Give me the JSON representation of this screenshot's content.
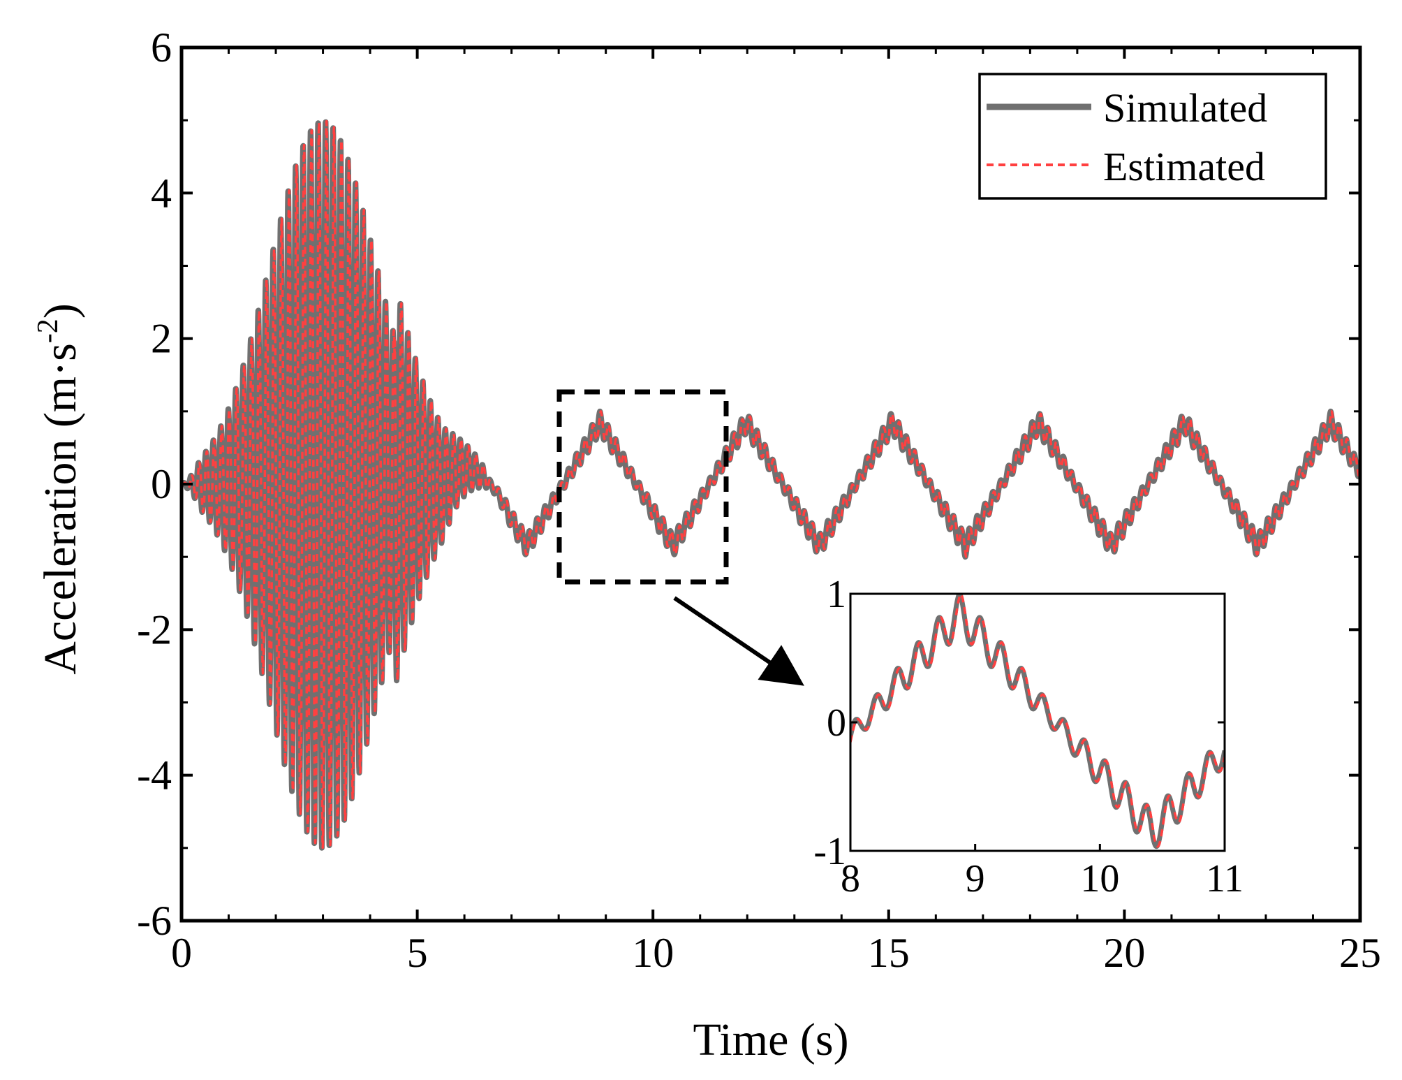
{
  "chart_data": [
    {
      "type": "line",
      "xlabel": "Time (s)",
      "ylabel": "Acceleration (m·s",
      "ylabel_superscript": "-2",
      "ylabel_close": ")",
      "xlim": [
        0,
        25
      ],
      "ylim": [
        -6,
        6
      ],
      "xticks": [
        0,
        5,
        10,
        15,
        20,
        25
      ],
      "xtick_labels": [
        "0",
        "5",
        "10",
        "15",
        "20",
        "25"
      ],
      "yticks": [
        -6,
        -4,
        -2,
        0,
        2,
        4,
        6
      ],
      "ytick_labels": [
        "-6",
        "-4",
        "-2",
        "0",
        "2",
        "4",
        "6"
      ],
      "grid": false,
      "legend_position": "top-right",
      "series": [
        {
          "name": "Simulated",
          "color": "#707070",
          "style": "solid"
        },
        {
          "name": "Estimated",
          "color": "#ff4040",
          "style": "dashed"
        }
      ],
      "signal": {
        "x_start": 0,
        "x_end": 25,
        "burst_end": 6.5,
        "burst_peak_time": 3.0,
        "burst_peak_amplitude": 5.0,
        "burst_frequency_hz": 6.3,
        "slow_wave_period_s": 3.1,
        "slow_wave_amplitude": 0.85,
        "ripple_amplitude": 0.15,
        "ripple_frequency_hz": 6.0
      },
      "zoom_box": {
        "x": [
          8.1,
          11.6
        ],
        "y": [
          -1.3,
          1.3
        ]
      }
    },
    {
      "type": "line",
      "inset": true,
      "xlim": [
        8,
        11
      ],
      "ylim": [
        -1,
        1
      ],
      "xticks": [
        8,
        9,
        10,
        11
      ],
      "xtick_labels": [
        "8",
        "9",
        "10",
        "11"
      ],
      "yticks": [
        -1,
        0,
        1
      ],
      "ytick_labels": [
        "-1",
        "0",
        "1"
      ],
      "series": [
        {
          "name": "Simulated",
          "color": "#707070",
          "style": "solid"
        },
        {
          "name": "Estimated",
          "color": "#ff4040",
          "style": "dashed"
        }
      ]
    }
  ]
}
